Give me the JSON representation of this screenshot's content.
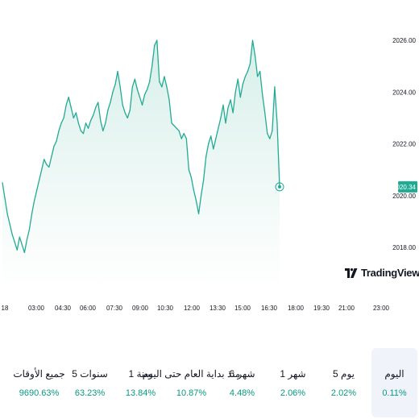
{
  "colors": {
    "line": "#22ab94",
    "fill_top": "#d7efe9",
    "fill_bottom": "#ffffff",
    "change": "#089981",
    "price_tag": "#22ab94",
    "active_tab": "#f0f3fa"
  },
  "logo": {
    "text": "TradingView",
    "icon": "tradingview-logo-icon"
  },
  "chart_data": {
    "type": "area",
    "xlabel": "",
    "ylabel": "",
    "x_ticks": [
      "18",
      "03:00",
      "04:30",
      "06:00",
      "07:30",
      "09:00",
      "10:30",
      "12:00",
      "13:30",
      "15:00",
      "16:30",
      "18:00",
      "19:30",
      "21:00",
      "23:00"
    ],
    "y_ticks": [
      "2026.00",
      "2024.00",
      "2022.00",
      "2020.00",
      "2018.00"
    ],
    "ylim": [
      2017.7,
      2026.4
    ],
    "last_price": "2020.34",
    "grid": false,
    "series": [
      {
        "values": [
          2020.5,
          2019.9,
          2019.3,
          2018.9,
          2018.5,
          2018.2,
          2017.9,
          2018.4,
          2018.1,
          2017.8,
          2018.3,
          2018.7,
          2019.3,
          2019.8,
          2020.2,
          2020.6,
          2021.0,
          2021.4,
          2021.2,
          2021.1,
          2021.5,
          2021.9,
          2022.1,
          2022.5,
          2022.8,
          2023.0,
          2023.5,
          2023.8,
          2023.4,
          2023.0,
          2023.2,
          2022.8,
          2022.5,
          2022.4,
          2022.8,
          2022.6,
          2022.9,
          2023.1,
          2023.4,
          2023.6,
          2022.9,
          2022.5,
          2022.8,
          2023.3,
          2023.6,
          2024.0,
          2024.3,
          2024.8,
          2024.2,
          2023.5,
          2023.2,
          2023.0,
          2023.3,
          2024.2,
          2024.5,
          2024.1,
          2023.8,
          2023.5,
          2023.9,
          2024.1,
          2024.4,
          2025.0,
          2025.8,
          2026.0,
          2024.4,
          2024.2,
          2024.6,
          2024.2,
          2023.7,
          2022.8,
          2022.7,
          2022.6,
          2022.5,
          2022.2,
          2022.4,
          2022.2,
          2021.0,
          2020.7,
          2020.2,
          2019.8,
          2019.3,
          2020.0,
          2020.6,
          2021.5,
          2022.0,
          2022.3,
          2021.8,
          2022.2,
          2022.6,
          2023.0,
          2023.5,
          2022.8,
          2023.4,
          2023.7,
          2023.2,
          2024.0,
          2024.5,
          2023.8,
          2024.3,
          2024.6,
          2024.8,
          2025.1,
          2026.0,
          2025.4,
          2024.6,
          2024.8,
          2023.9,
          2023.2,
          2022.4,
          2022.2,
          2022.5,
          2024.2,
          2022.8,
          2020.34
        ]
      }
    ]
  },
  "periods": [
    {
      "label": "اليوم",
      "value": "0.11%",
      "active": true
    },
    {
      "label": "5 يوم",
      "value": "2.02%",
      "active": false
    },
    {
      "label": "1 شهر",
      "value": "2.06%",
      "active": false
    },
    {
      "label": "6 شهر",
      "value": "4.48%",
      "active": false
    },
    {
      "label": "منذ بداية العام حتى اليوم",
      "value": "10.87%",
      "active": false
    },
    {
      "label": "1 سنة",
      "value": "13.84%",
      "active": false
    },
    {
      "label": "5 سنوات",
      "value": "63.23%",
      "active": false
    },
    {
      "label": "جميع الأوقات",
      "value": "9690.63%",
      "active": false
    }
  ]
}
